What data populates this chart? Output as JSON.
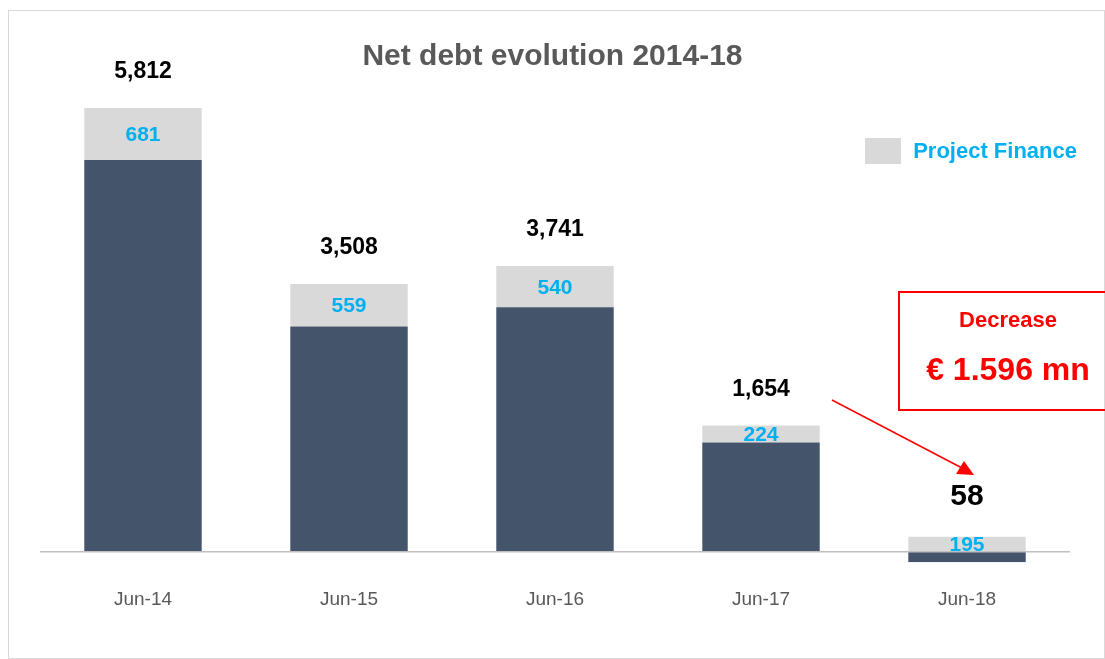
{
  "chart_data": {
    "type": "bar",
    "title": "Net debt evolution 2014-18",
    "categories": [
      "Jun-14",
      "Jun-15",
      "Jun-16",
      "Jun-17",
      "Jun-18"
    ],
    "stacked": true,
    "series": [
      {
        "color": "#44546a",
        "values": [
          5131,
          2949,
          3201,
          1430,
          -137
        ]
      },
      {
        "name": "Project Finance",
        "color": "#d9d9d9",
        "values": [
          681,
          559,
          540,
          224,
          195
        ],
        "value_labels": [
          "681",
          "559",
          "540",
          "224",
          "195"
        ]
      }
    ],
    "totals": [
      "5,812",
      "3,508",
      "3,741",
      "1,654",
      "58"
    ],
    "legend": "top right",
    "annotations": [
      "Decrease",
      "€ 1.596 mn"
    ]
  }
}
